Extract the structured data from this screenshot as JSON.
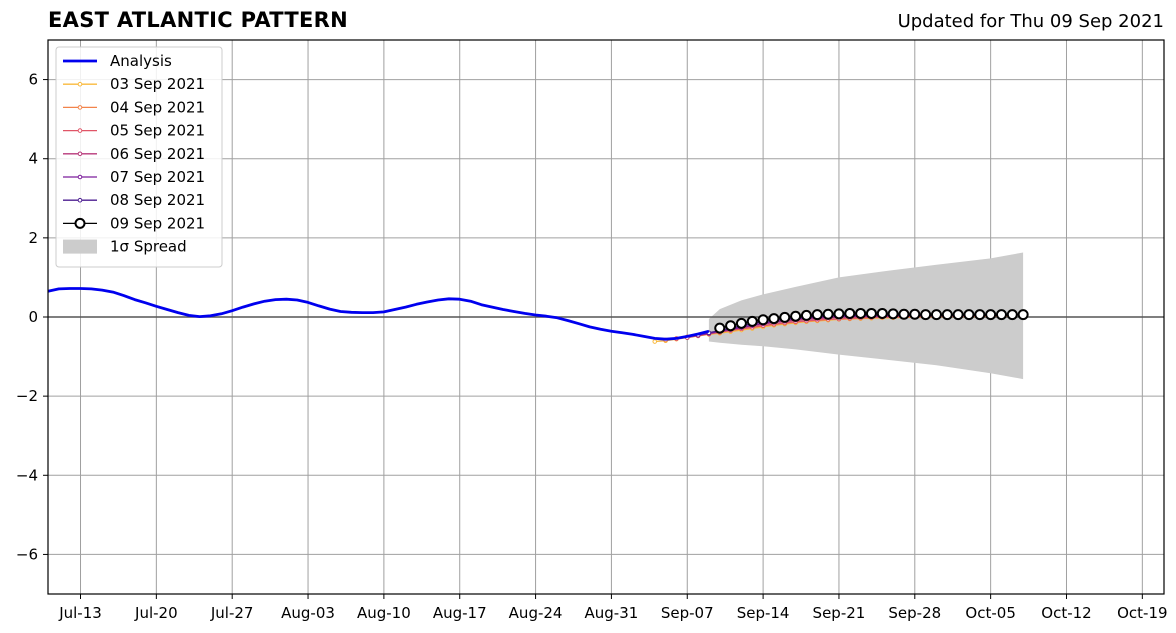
{
  "title": "EAST ATLANTIC PATTERN",
  "subtitle": "Updated for Thu 09 Sep 2021",
  "chart_data": {
    "type": "line",
    "xlim": [
      "2021-07-10",
      "2021-10-21"
    ],
    "ylim": [
      -7,
      7
    ],
    "grid": true,
    "legend_placement": "top-left",
    "x_ticks": [
      "2021-07-13",
      "2021-07-20",
      "2021-07-27",
      "2021-08-03",
      "2021-08-10",
      "2021-08-17",
      "2021-08-24",
      "2021-08-31",
      "2021-09-07",
      "2021-09-14",
      "2021-09-21",
      "2021-09-28",
      "2021-10-05",
      "2021-10-12",
      "2021-10-19"
    ],
    "x_tick_labels": [
      "Jul-13",
      "Jul-20",
      "Jul-27",
      "Aug-03",
      "Aug-10",
      "Aug-17",
      "Aug-24",
      "Aug-31",
      "Sep-07",
      "Sep-14",
      "Sep-21",
      "Sep-28",
      "Oct-05",
      "Oct-12",
      "Oct-19"
    ],
    "y_ticks": [
      -6,
      -4,
      -2,
      0,
      2,
      4,
      6
    ],
    "y_tick_labels": [
      "−6",
      "−4",
      "−2",
      "0",
      "2",
      "4",
      "6"
    ],
    "analysis": {
      "name": "Analysis",
      "color": "#0000ee",
      "x": [
        "2021-07-10",
        "2021-07-11",
        "2021-07-12",
        "2021-07-13",
        "2021-07-14",
        "2021-07-15",
        "2021-07-16",
        "2021-07-17",
        "2021-07-18",
        "2021-07-19",
        "2021-07-20",
        "2021-07-21",
        "2021-07-22",
        "2021-07-23",
        "2021-07-24",
        "2021-07-25",
        "2021-07-26",
        "2021-07-27",
        "2021-07-28",
        "2021-07-29",
        "2021-07-30",
        "2021-07-31",
        "2021-08-01",
        "2021-08-02",
        "2021-08-03",
        "2021-08-04",
        "2021-08-05",
        "2021-08-06",
        "2021-08-07",
        "2021-08-08",
        "2021-08-09",
        "2021-08-10",
        "2021-08-11",
        "2021-08-12",
        "2021-08-13",
        "2021-08-14",
        "2021-08-15",
        "2021-08-16",
        "2021-08-17",
        "2021-08-18",
        "2021-08-19",
        "2021-08-20",
        "2021-08-21",
        "2021-08-22",
        "2021-08-23",
        "2021-08-24",
        "2021-08-25",
        "2021-08-26",
        "2021-08-27",
        "2021-08-28",
        "2021-08-29",
        "2021-08-30",
        "2021-08-31",
        "2021-09-01",
        "2021-09-02",
        "2021-09-03",
        "2021-09-04",
        "2021-09-05",
        "2021-09-06",
        "2021-09-07",
        "2021-09-08",
        "2021-09-09"
      ],
      "values": [
        0.65,
        0.71,
        0.72,
        0.72,
        0.71,
        0.68,
        0.63,
        0.54,
        0.44,
        0.36,
        0.27,
        0.19,
        0.11,
        0.04,
        0.01,
        0.03,
        0.08,
        0.16,
        0.25,
        0.33,
        0.4,
        0.44,
        0.45,
        0.43,
        0.37,
        0.28,
        0.2,
        0.14,
        0.12,
        0.11,
        0.11,
        0.13,
        0.19,
        0.25,
        0.32,
        0.38,
        0.43,
        0.46,
        0.45,
        0.4,
        0.31,
        0.25,
        0.19,
        0.14,
        0.09,
        0.05,
        0.02,
        -0.02,
        -0.09,
        -0.17,
        -0.25,
        -0.31,
        -0.36,
        -0.4,
        -0.44,
        -0.49,
        -0.54,
        -0.56,
        -0.54,
        -0.49,
        -0.43,
        -0.36
      ]
    },
    "forecasts": [
      {
        "name": "03 Sep 2021",
        "color": "#f9b93c",
        "start": "2021-09-04",
        "values": [
          -0.62,
          -0.6,
          -0.56,
          -0.52,
          -0.48,
          -0.44,
          -0.41,
          -0.37,
          -0.33,
          -0.29,
          -0.25,
          -0.21,
          -0.18,
          -0.15,
          -0.12,
          -0.1,
          -0.08,
          -0.06,
          -0.05,
          -0.04,
          -0.03,
          -0.02,
          -0.02,
          -0.01,
          -0.01,
          0.0,
          0.0,
          0.01,
          0.01,
          0.01,
          0.01,
          0.02,
          0.02,
          0.02
        ]
      },
      {
        "name": "04 Sep 2021",
        "color": "#f2844b",
        "start": "2021-09-05",
        "values": [
          -0.58,
          -0.54,
          -0.5,
          -0.46,
          -0.42,
          -0.38,
          -0.34,
          -0.3,
          -0.26,
          -0.22,
          -0.19,
          -0.16,
          -0.13,
          -0.1,
          -0.08,
          -0.06,
          -0.05,
          -0.04,
          -0.03,
          -0.02,
          -0.01,
          -0.01,
          0.0,
          0.0,
          0.01,
          0.01,
          0.01,
          0.02,
          0.02,
          0.02,
          0.02,
          0.02,
          0.03
        ]
      },
      {
        "name": "05 Sep 2021",
        "color": "#e05567",
        "start": "2021-09-06",
        "values": [
          -0.55,
          -0.51,
          -0.47,
          -0.43,
          -0.39,
          -0.34,
          -0.3,
          -0.26,
          -0.22,
          -0.18,
          -0.15,
          -0.12,
          -0.1,
          -0.08,
          -0.06,
          -0.05,
          -0.03,
          -0.02,
          -0.01,
          0.0,
          0.0,
          0.01,
          0.01,
          0.01,
          0.02,
          0.02,
          0.02,
          0.02,
          0.03,
          0.03,
          0.03,
          0.03
        ]
      },
      {
        "name": "06 Sep 2021",
        "color": "#b73779",
        "start": "2021-09-07",
        "values": [
          -0.52,
          -0.47,
          -0.42,
          -0.37,
          -0.32,
          -0.27,
          -0.22,
          -0.18,
          -0.14,
          -0.11,
          -0.08,
          -0.06,
          -0.04,
          -0.02,
          -0.01,
          0.0,
          0.01,
          0.01,
          0.02,
          0.02,
          0.02,
          0.03,
          0.03,
          0.03,
          0.03,
          0.03,
          0.03,
          0.04,
          0.04,
          0.04,
          0.04
        ]
      },
      {
        "name": "07 Sep 2021",
        "color": "#7c1d9c",
        "start": "2021-09-08",
        "values": [
          -0.46,
          -0.41,
          -0.36,
          -0.31,
          -0.26,
          -0.21,
          -0.16,
          -0.12,
          -0.08,
          -0.05,
          -0.03,
          -0.01,
          0.0,
          0.01,
          0.02,
          0.02,
          0.03,
          0.03,
          0.03,
          0.04,
          0.04,
          0.04,
          0.04,
          0.04,
          0.04,
          0.04,
          0.05,
          0.05,
          0.05,
          0.05
        ]
      },
      {
        "name": "08 Sep 2021",
        "color": "#4b1d91",
        "start": "2021-09-09",
        "values": [
          -0.4,
          -0.34,
          -0.28,
          -0.22,
          -0.17,
          -0.12,
          -0.08,
          -0.05,
          -0.02,
          0.0,
          0.02,
          0.03,
          0.04,
          0.04,
          0.05,
          0.05,
          0.05,
          0.05,
          0.05,
          0.05,
          0.05,
          0.05,
          0.05,
          0.05,
          0.05,
          0.05,
          0.05,
          0.05,
          0.05
        ]
      },
      {
        "name": "09 Sep 2021",
        "color": "#000000",
        "start": "2021-09-10",
        "values": [
          -0.28,
          -0.22,
          -0.16,
          -0.11,
          -0.07,
          -0.04,
          -0.01,
          0.02,
          0.04,
          0.06,
          0.07,
          0.08,
          0.09,
          0.09,
          0.09,
          0.09,
          0.08,
          0.07,
          0.07,
          0.06,
          0.06,
          0.06,
          0.06,
          0.06,
          0.06,
          0.06,
          0.06,
          0.06,
          0.06
        ]
      }
    ],
    "spread": {
      "name": "1σ Spread",
      "color": "#cccccc",
      "x": [
        "2021-09-09",
        "2021-09-10",
        "2021-09-12",
        "2021-09-14",
        "2021-09-17",
        "2021-09-21",
        "2021-09-25",
        "2021-09-30",
        "2021-10-05",
        "2021-10-08"
      ],
      "upper": [
        -0.05,
        0.2,
        0.42,
        0.57,
        0.76,
        1.0,
        1.15,
        1.32,
        1.48,
        1.63
      ],
      "lower": [
        -0.62,
        -0.65,
        -0.7,
        -0.74,
        -0.82,
        -0.95,
        -1.07,
        -1.22,
        -1.42,
        -1.57
      ]
    },
    "legend": [
      "Analysis",
      "03 Sep 2021",
      "04 Sep 2021",
      "05 Sep 2021",
      "06 Sep 2021",
      "07 Sep 2021",
      "08 Sep 2021",
      "09 Sep 2021",
      "1σ Spread"
    ]
  }
}
